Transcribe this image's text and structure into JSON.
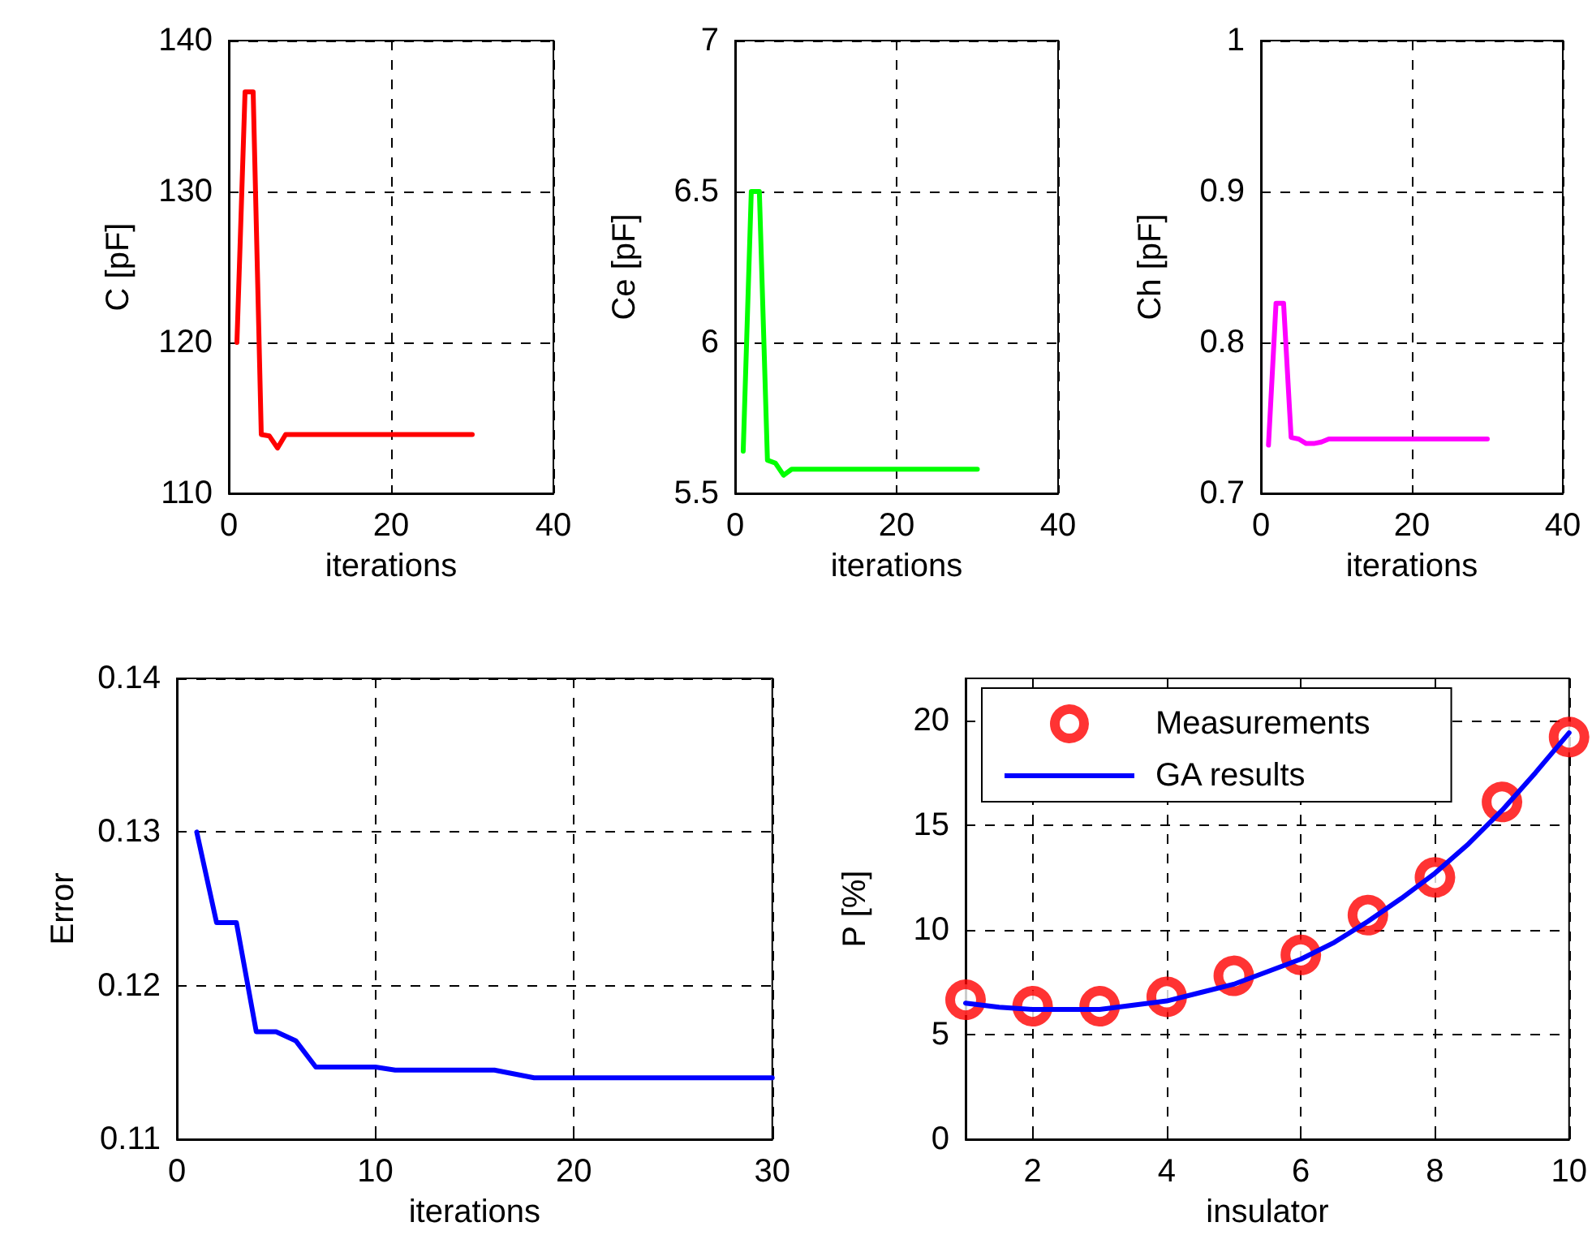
{
  "chart_data": [
    {
      "type": "line",
      "xlabel": "iterations",
      "ylabel": "C [pF]",
      "xlim": [
        0,
        40
      ],
      "xticks": [
        0,
        20,
        40
      ],
      "ylim": [
        110,
        140
      ],
      "yticks": [
        110,
        120,
        130,
        140
      ],
      "grid": true,
      "line_style": "solid",
      "series": [
        {
          "color": "#ff0000",
          "x": [
            1,
            2,
            3,
            4,
            5,
            6,
            7,
            10,
            15,
            20,
            25,
            30
          ],
          "values": [
            120,
            136.6,
            136.6,
            113.9,
            113.8,
            113.0,
            113.9,
            113.9,
            113.9,
            113.9,
            113.9,
            113.9
          ]
        }
      ]
    },
    {
      "type": "line",
      "xlabel": "iterations",
      "ylabel": "Ce [pF]",
      "xlim": [
        0,
        40
      ],
      "xticks": [
        0,
        20,
        40
      ],
      "ylim": [
        5.5,
        7
      ],
      "yticks": [
        5.5,
        6,
        6.5,
        7
      ],
      "grid": true,
      "line_style": "solid",
      "series": [
        {
          "color": "#00ff00",
          "x": [
            1,
            2,
            3,
            4,
            5,
            6,
            7,
            10,
            15,
            20,
            25,
            30
          ],
          "values": [
            5.64,
            6.5,
            6.5,
            5.61,
            5.6,
            5.56,
            5.58,
            5.58,
            5.58,
            5.58,
            5.58,
            5.58
          ]
        }
      ]
    },
    {
      "type": "line",
      "xlabel": "iterations",
      "ylabel": "Ch [pF]",
      "xlim": [
        0,
        40
      ],
      "xticks": [
        0,
        20,
        40
      ],
      "ylim": [
        0.7,
        1
      ],
      "yticks": [
        0.7,
        0.8,
        0.9,
        1
      ],
      "grid": true,
      "line_style": "solid",
      "series": [
        {
          "color": "#ff00ff",
          "x": [
            1,
            2,
            3,
            4,
            5,
            6,
            7,
            8,
            9,
            15,
            20,
            25,
            30
          ],
          "values": [
            0.732,
            0.826,
            0.826,
            0.737,
            0.736,
            0.733,
            0.733,
            0.734,
            0.736,
            0.736,
            0.736,
            0.736,
            0.736
          ]
        }
      ]
    },
    {
      "type": "line",
      "xlabel": "iterations",
      "ylabel": "Error",
      "xlim": [
        0,
        30
      ],
      "xticks": [
        0,
        10,
        20,
        30
      ],
      "ylim": [
        0.11,
        0.14
      ],
      "yticks": [
        0.11,
        0.12,
        0.13,
        0.14
      ],
      "grid": true,
      "line_style": "solid",
      "series": [
        {
          "color": "#0000ff",
          "x": [
            1,
            2,
            3,
            4,
            5,
            6,
            7,
            10,
            11,
            16,
            18,
            20,
            25,
            30
          ],
          "values": [
            0.13,
            0.1241,
            0.1241,
            0.117,
            0.117,
            0.1164,
            0.1147,
            0.1147,
            0.1145,
            0.1145,
            0.114,
            0.114,
            0.114,
            0.114
          ]
        }
      ]
    },
    {
      "type": "line",
      "xlabel": "insulator",
      "ylabel": "P [%]",
      "xlim": [
        1,
        10
      ],
      "xticks": [
        2,
        4,
        6,
        8,
        10
      ],
      "ylim": [
        0,
        22
      ],
      "yticks": [
        0,
        5,
        10,
        15,
        20
      ],
      "grid": true,
      "legend": "top left",
      "series": [
        {
          "type": "scatter",
          "name": "Measurements",
          "color": "#ff0000",
          "marker": "circle",
          "x": [
            1,
            2,
            3,
            4,
            5,
            6,
            7,
            8,
            9,
            10
          ],
          "values": [
            6.66,
            6.35,
            6.35,
            6.8,
            7.8,
            8.8,
            10.7,
            12.5,
            16.1,
            19.2
          ]
        },
        {
          "type": "line",
          "name": "GA results",
          "color": "#0000ff",
          "line_style": "solid",
          "x": [
            1,
            1.5,
            2,
            2.5,
            3,
            3.5,
            4,
            4.5,
            5,
            5.5,
            6,
            6.5,
            7,
            7.5,
            8,
            8.5,
            9,
            9.5,
            10
          ],
          "values": [
            6.5,
            6.3,
            6.2,
            6.2,
            6.2,
            6.4,
            6.6,
            7.0,
            7.4,
            8.0,
            8.6,
            9.4,
            10.4,
            11.5,
            12.7,
            14.1,
            15.7,
            17.5,
            19.4
          ]
        }
      ]
    }
  ]
}
